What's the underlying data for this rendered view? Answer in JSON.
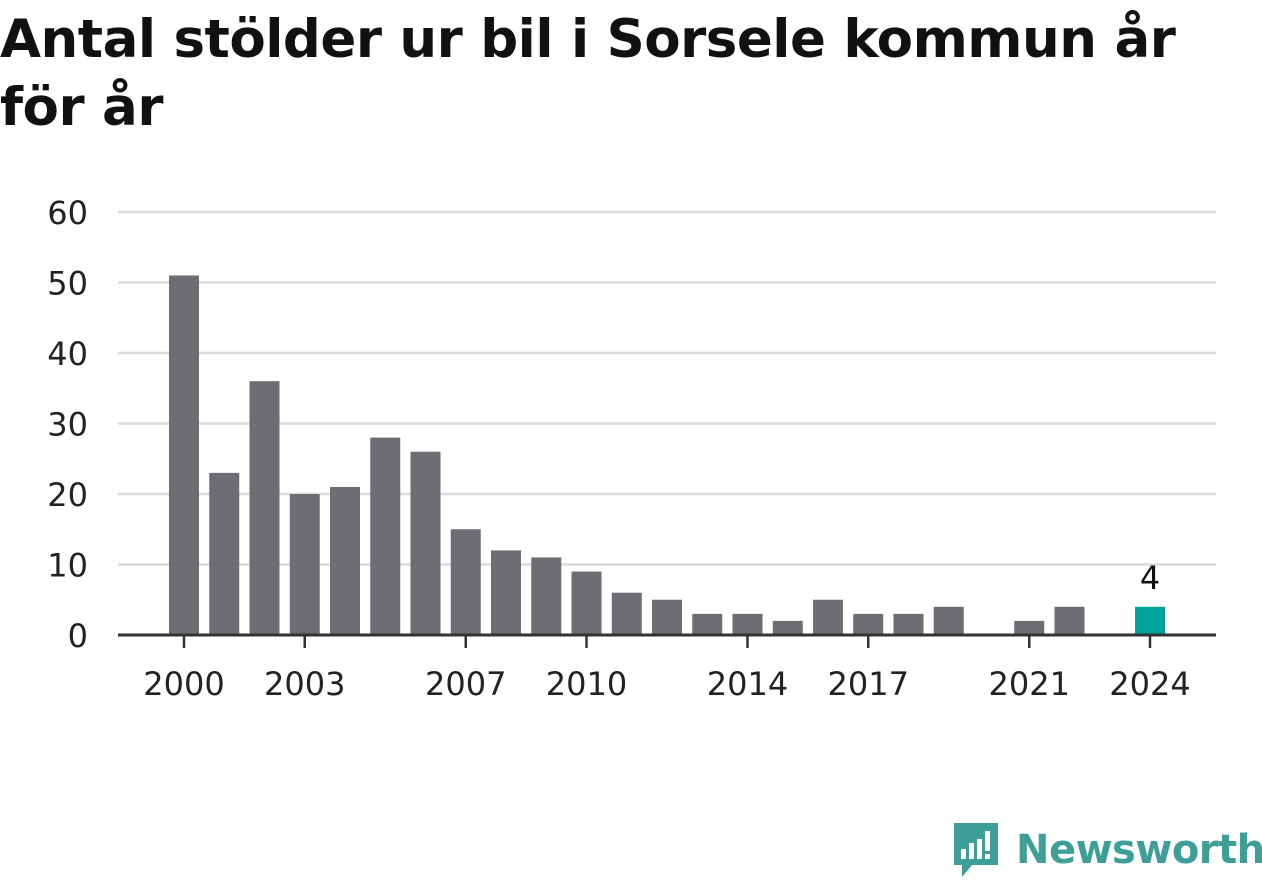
{
  "title": "Antal stölder ur bil i Sorsele kommun år för år",
  "brand": {
    "name": "Newsworthy",
    "color": "#3d9f98",
    "icon": "newsworthy-logo-icon"
  },
  "colors": {
    "bar": "#6e6d73",
    "highlight": "#00a39a",
    "grid": "#dcdcdc",
    "axis": "#333333",
    "text": "#222222"
  },
  "chart_data": {
    "type": "bar",
    "title": "Antal stölder ur bil i Sorsele kommun år för år",
    "xlabel": "",
    "ylabel": "",
    "categories": [
      2000,
      2001,
      2002,
      2003,
      2004,
      2005,
      2006,
      2007,
      2008,
      2009,
      2010,
      2011,
      2012,
      2013,
      2014,
      2015,
      2016,
      2017,
      2018,
      2019,
      2020,
      2021,
      2022,
      2023,
      2024
    ],
    "values": [
      51,
      23,
      36,
      20,
      21,
      28,
      26,
      15,
      12,
      11,
      9,
      6,
      5,
      3,
      3,
      2,
      5,
      3,
      3,
      4,
      0,
      2,
      4,
      null,
      4
    ],
    "highlight": {
      "category": 2024,
      "label": "4"
    },
    "ylim": [
      0,
      60
    ],
    "yticks": [
      0,
      10,
      20,
      30,
      40,
      50,
      60
    ],
    "xticks": [
      2000,
      2003,
      2007,
      2010,
      2014,
      2017,
      2021,
      2024
    ],
    "grid": true
  }
}
